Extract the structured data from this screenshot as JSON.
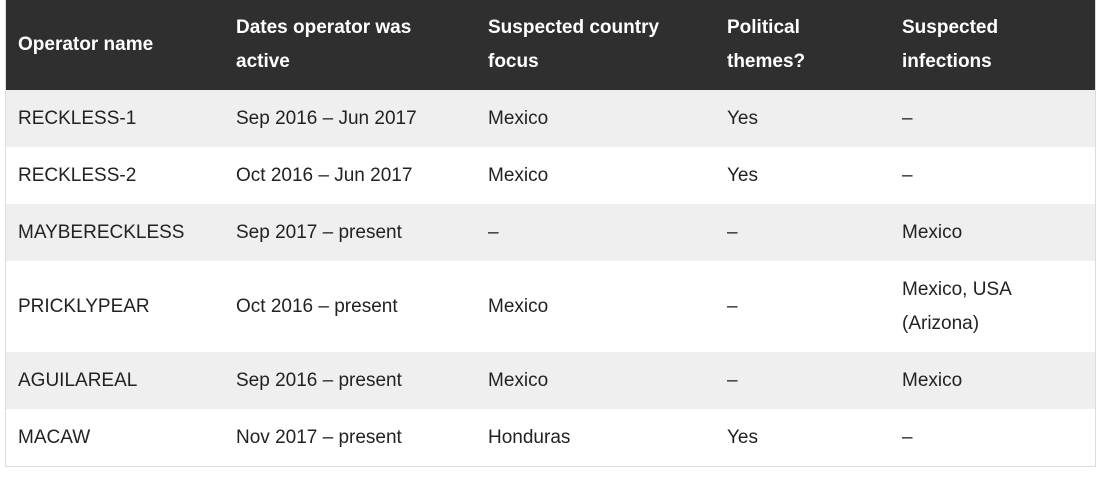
{
  "table": {
    "headers": [
      "Operator name",
      "Dates operator was active",
      "Suspected country focus",
      "Political themes?",
      "Suspected infections"
    ],
    "rows": [
      [
        "RECKLESS-1",
        "Sep 2016 – Jun 2017",
        "Mexico",
        "Yes",
        "–"
      ],
      [
        "RECKLESS-2",
        "Oct 2016 – Jun 2017",
        "Mexico",
        "Yes",
        "–"
      ],
      [
        "MAYBERECKLESS",
        "Sep 2017 – present",
        "–",
        "–",
        "Mexico"
      ],
      [
        "PRICKLYPEAR",
        "Oct 2016 – present",
        "Mexico",
        "–",
        "Mexico, USA (Arizona)"
      ],
      [
        "AGUILAREAL",
        "Sep 2016 – present",
        "Mexico",
        "–",
        "Mexico"
      ],
      [
        "MACAW",
        "Nov 2017 – present",
        "Honduras",
        "Yes",
        "–"
      ]
    ]
  }
}
